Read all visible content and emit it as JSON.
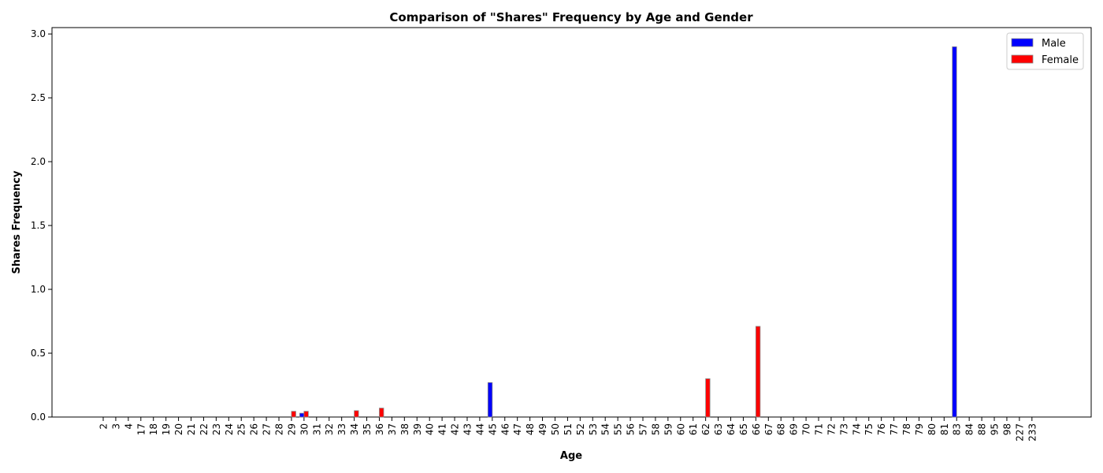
{
  "chart_data": {
    "type": "bar",
    "title": "Comparison of \"Shares\" Frequency by Age and Gender",
    "xlabel": "Age",
    "ylabel": "Shares Frequency",
    "ylim": [
      0,
      3.05
    ],
    "y_ticks": [
      0.0,
      0.5,
      1.0,
      1.5,
      2.0,
      2.5,
      3.0
    ],
    "legend_position": "top-right",
    "grid": false,
    "categories": [
      "2",
      "3",
      "4",
      "17",
      "18",
      "19",
      "20",
      "21",
      "22",
      "23",
      "24",
      "25",
      "26",
      "27",
      "28",
      "29",
      "30",
      "31",
      "32",
      "33",
      "34",
      "35",
      "36",
      "37",
      "38",
      "39",
      "40",
      "41",
      "42",
      "43",
      "44",
      "45",
      "46",
      "47",
      "48",
      "49",
      "50",
      "51",
      "52",
      "53",
      "54",
      "55",
      "56",
      "57",
      "58",
      "59",
      "60",
      "61",
      "62",
      "63",
      "64",
      "65",
      "66",
      "67",
      "68",
      "69",
      "70",
      "71",
      "72",
      "73",
      "74",
      "75",
      "76",
      "77",
      "78",
      "79",
      "80",
      "81",
      "83",
      "84",
      "88",
      "95",
      "98",
      "227",
      "233"
    ],
    "series": [
      {
        "name": "Male",
        "color": "#0000ff",
        "values": [
          0,
          0,
          0,
          0,
          0,
          0,
          0,
          0,
          0,
          0,
          0,
          0,
          0,
          0,
          0,
          0,
          0.03,
          0,
          0,
          0,
          0,
          0,
          0,
          0,
          0,
          0,
          0,
          0,
          0,
          0,
          0,
          0.27,
          0,
          0,
          0,
          0,
          0,
          0,
          0,
          0,
          0,
          0,
          0,
          0,
          0,
          0,
          0,
          0,
          0,
          0,
          0,
          0,
          0,
          0,
          0,
          0,
          0,
          0,
          0,
          0,
          0,
          0,
          0,
          0,
          0,
          0,
          0,
          0,
          2.9,
          0,
          0,
          0,
          0,
          0,
          0
        ]
      },
      {
        "name": "Female",
        "color": "#ff0000",
        "values": [
          0,
          0,
          0,
          0,
          0,
          0,
          0,
          0,
          0,
          0,
          0,
          0,
          0,
          0,
          0,
          0.045,
          0.045,
          0,
          0,
          0,
          0.05,
          0,
          0.07,
          0,
          0,
          0,
          0,
          0,
          0,
          0,
          0,
          0,
          0,
          0,
          0,
          0,
          0,
          0,
          0,
          0,
          0,
          0,
          0,
          0,
          0,
          0,
          0,
          0,
          0.3,
          0,
          0,
          0,
          0.71,
          0,
          0,
          0,
          0,
          0,
          0,
          0,
          0,
          0,
          0,
          0,
          0,
          0,
          0,
          0,
          0,
          0,
          0,
          0,
          0,
          0,
          0
        ]
      }
    ]
  }
}
